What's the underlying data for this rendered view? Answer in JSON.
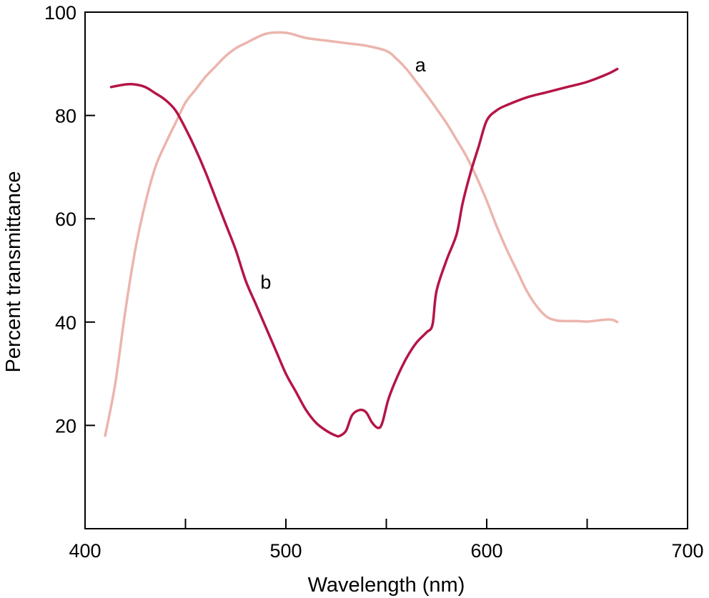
{
  "chart_data": {
    "type": "line",
    "title": "",
    "xlabel": "Wavelength (nm)",
    "ylabel": "Percent transmittance",
    "xlim": [
      400,
      700
    ],
    "ylim": [
      0,
      100
    ],
    "x_ticks": [
      400,
      450,
      500,
      550,
      600,
      650,
      700
    ],
    "x_tick_labels": [
      "400",
      "",
      "500",
      "",
      "600",
      "",
      "700"
    ],
    "y_ticks": [
      20,
      40,
      60,
      80,
      100
    ],
    "y_tick_labels": [
      "20",
      "40",
      "60",
      "80",
      "100"
    ],
    "grid": false,
    "legend": "none",
    "series": [
      {
        "name": "a",
        "label": "a",
        "color": "#ebb5ad",
        "label_at": [
          567,
          88.5
        ],
        "points": [
          [
            410,
            18
          ],
          [
            415,
            28
          ],
          [
            420,
            42
          ],
          [
            425,
            54
          ],
          [
            430,
            63
          ],
          [
            435,
            70
          ],
          [
            440,
            74.5
          ],
          [
            445,
            78.5
          ],
          [
            450,
            82.5
          ],
          [
            455,
            85
          ],
          [
            460,
            87.5
          ],
          [
            465,
            89.5
          ],
          [
            470,
            91.5
          ],
          [
            475,
            93
          ],
          [
            480,
            94
          ],
          [
            490,
            95.8
          ],
          [
            500,
            96
          ],
          [
            510,
            95
          ],
          [
            520,
            94.5
          ],
          [
            530,
            94
          ],
          [
            540,
            93.5
          ],
          [
            550,
            92.5
          ],
          [
            555,
            91
          ],
          [
            560,
            89
          ],
          [
            565,
            86.5
          ],
          [
            570,
            84
          ],
          [
            575,
            81.3
          ],
          [
            580,
            78.5
          ],
          [
            585,
            75.3
          ],
          [
            590,
            72
          ],
          [
            595,
            68
          ],
          [
            600,
            63.5
          ],
          [
            605,
            58.5
          ],
          [
            610,
            54
          ],
          [
            615,
            50
          ],
          [
            620,
            46
          ],
          [
            625,
            43
          ],
          [
            630,
            41
          ],
          [
            635,
            40.3
          ],
          [
            640,
            40.2
          ],
          [
            645,
            40.2
          ],
          [
            650,
            40.1
          ],
          [
            655,
            40.3
          ],
          [
            660,
            40.5
          ],
          [
            663,
            40.4
          ],
          [
            665,
            40
          ]
        ]
      },
      {
        "name": "b",
        "label": "b",
        "color": "#b51546",
        "label_at": [
          490,
          46.5
        ],
        "points": [
          [
            413,
            85.5
          ],
          [
            420,
            86
          ],
          [
            425,
            86
          ],
          [
            430,
            85.5
          ],
          [
            435,
            84.3
          ],
          [
            440,
            83
          ],
          [
            445,
            81
          ],
          [
            450,
            77.5
          ],
          [
            455,
            73.5
          ],
          [
            460,
            69
          ],
          [
            465,
            64
          ],
          [
            470,
            59
          ],
          [
            475,
            54
          ],
          [
            480,
            48
          ],
          [
            485,
            43.5
          ],
          [
            490,
            39
          ],
          [
            495,
            34.5
          ],
          [
            500,
            30
          ],
          [
            505,
            26.5
          ],
          [
            510,
            23
          ],
          [
            515,
            20.5
          ],
          [
            520,
            19
          ],
          [
            525,
            18
          ],
          [
            527,
            18
          ],
          [
            530,
            19
          ],
          [
            533,
            22
          ],
          [
            537,
            23
          ],
          [
            540,
            22.5
          ],
          [
            543,
            20.5
          ],
          [
            546,
            19.5
          ],
          [
            548,
            20.5
          ],
          [
            551,
            25
          ],
          [
            555,
            29
          ],
          [
            560,
            33
          ],
          [
            565,
            36
          ],
          [
            570,
            38
          ],
          [
            573,
            39.5
          ],
          [
            575,
            46
          ],
          [
            580,
            52
          ],
          [
            585,
            57
          ],
          [
            588,
            63
          ],
          [
            592,
            69
          ],
          [
            596,
            74
          ],
          [
            600,
            79
          ],
          [
            605,
            81
          ],
          [
            610,
            82
          ],
          [
            620,
            83.5
          ],
          [
            630,
            84.5
          ],
          [
            640,
            85.5
          ],
          [
            650,
            86.5
          ],
          [
            660,
            88
          ],
          [
            665,
            89
          ]
        ]
      }
    ]
  }
}
